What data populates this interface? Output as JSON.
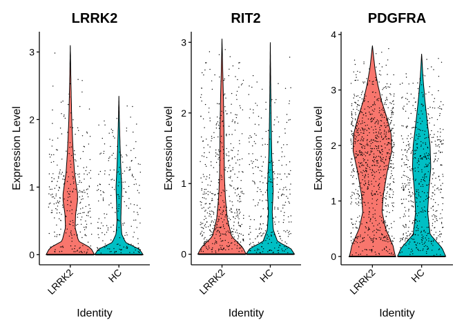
{
  "chart_data": [
    {
      "type": "violin",
      "title": "LRRK2",
      "xlabel": "Identity",
      "ylabel": "Expression Level",
      "categories": [
        "LRRK2",
        "HC"
      ],
      "colors": [
        "#F8766D",
        "#00BFC4"
      ],
      "ylim": [
        -0.15,
        3.3
      ],
      "yticks": [
        "0",
        "1",
        "2",
        "3"
      ],
      "series": [
        {
          "name": "LRRK2",
          "max": 3.1,
          "zero_fraction": 0.6,
          "n_nonzero": 300,
          "profile": [
            [
              0,
              1.0
            ],
            [
              0.1,
              0.85
            ],
            [
              0.2,
              0.34
            ],
            [
              0.4,
              0.2
            ],
            [
              0.6,
              0.22
            ],
            [
              0.8,
              0.3
            ],
            [
              0.9,
              0.3
            ],
            [
              1.0,
              0.26
            ],
            [
              1.2,
              0.18
            ],
            [
              1.5,
              0.12
            ],
            [
              2.0,
              0.06
            ],
            [
              2.5,
              0.03
            ],
            [
              3.1,
              0.0
            ]
          ]
        },
        {
          "name": "HC",
          "max": 2.35,
          "zero_fraction": 0.65,
          "n_nonzero": 220,
          "profile": [
            [
              0,
              1.0
            ],
            [
              0.08,
              0.85
            ],
            [
              0.18,
              0.28
            ],
            [
              0.3,
              0.12
            ],
            [
              0.5,
              0.08
            ],
            [
              0.8,
              0.1
            ],
            [
              1.0,
              0.12
            ],
            [
              1.3,
              0.08
            ],
            [
              1.6,
              0.05
            ],
            [
              2.0,
              0.02
            ],
            [
              2.35,
              0.0
            ]
          ]
        }
      ]
    },
    {
      "type": "violin",
      "title": "RIT2",
      "xlabel": "Identity",
      "ylabel": "Expression Level",
      "categories": [
        "LRRK2",
        "HC"
      ],
      "colors": [
        "#F8766D",
        "#00BFC4"
      ],
      "ylim": [
        -0.15,
        3.15
      ],
      "yticks": [
        "0",
        "1",
        "2",
        "3"
      ],
      "series": [
        {
          "name": "LRRK2",
          "max": 3.05,
          "zero_fraction": 0.45,
          "n_nonzero": 520,
          "profile": [
            [
              0,
              1.0
            ],
            [
              0.1,
              0.85
            ],
            [
              0.25,
              0.4
            ],
            [
              0.5,
              0.22
            ],
            [
              0.8,
              0.14
            ],
            [
              1.1,
              0.1
            ],
            [
              1.4,
              0.09
            ],
            [
              1.8,
              0.08
            ],
            [
              2.2,
              0.06
            ],
            [
              2.6,
              0.03
            ],
            [
              3.05,
              0.0
            ]
          ]
        },
        {
          "name": "HC",
          "max": 3.0,
          "zero_fraction": 0.55,
          "n_nonzero": 300,
          "profile": [
            [
              0,
              1.0
            ],
            [
              0.08,
              0.85
            ],
            [
              0.18,
              0.3
            ],
            [
              0.35,
              0.12
            ],
            [
              0.6,
              0.08
            ],
            [
              0.9,
              0.12
            ],
            [
              1.1,
              0.1
            ],
            [
              1.4,
              0.06
            ],
            [
              1.8,
              0.04
            ],
            [
              2.3,
              0.02
            ],
            [
              3.0,
              0.0
            ]
          ]
        }
      ]
    },
    {
      "type": "violin",
      "title": "PDGFRA",
      "xlabel": "Identity",
      "ylabel": "Expression Level",
      "categories": [
        "LRRK2",
        "HC"
      ],
      "colors": [
        "#F8766D",
        "#00BFC4"
      ],
      "ylim": [
        -0.15,
        4.05
      ],
      "yticks": [
        "0",
        "1",
        "2",
        "3",
        "4"
      ],
      "series": [
        {
          "name": "LRRK2",
          "max": 3.8,
          "zero_fraction": 0.15,
          "n_nonzero": 900,
          "profile": [
            [
              0,
              0.95
            ],
            [
              0.2,
              0.85
            ],
            [
              0.5,
              0.55
            ],
            [
              0.8,
              0.4
            ],
            [
              1.1,
              0.45
            ],
            [
              1.5,
              0.6
            ],
            [
              1.9,
              0.8
            ],
            [
              2.2,
              0.78
            ],
            [
              2.5,
              0.6
            ],
            [
              2.8,
              0.38
            ],
            [
              3.1,
              0.22
            ],
            [
              3.4,
              0.1
            ],
            [
              3.8,
              0.0
            ]
          ]
        },
        {
          "name": "HC",
          "max": 3.65,
          "zero_fraction": 0.25,
          "n_nonzero": 600,
          "profile": [
            [
              0,
              1.0
            ],
            [
              0.15,
              0.85
            ],
            [
              0.4,
              0.35
            ],
            [
              0.8,
              0.25
            ],
            [
              1.2,
              0.3
            ],
            [
              1.6,
              0.38
            ],
            [
              2.0,
              0.35
            ],
            [
              2.4,
              0.24
            ],
            [
              2.8,
              0.14
            ],
            [
              3.2,
              0.06
            ],
            [
              3.65,
              0.0
            ]
          ]
        }
      ]
    }
  ]
}
